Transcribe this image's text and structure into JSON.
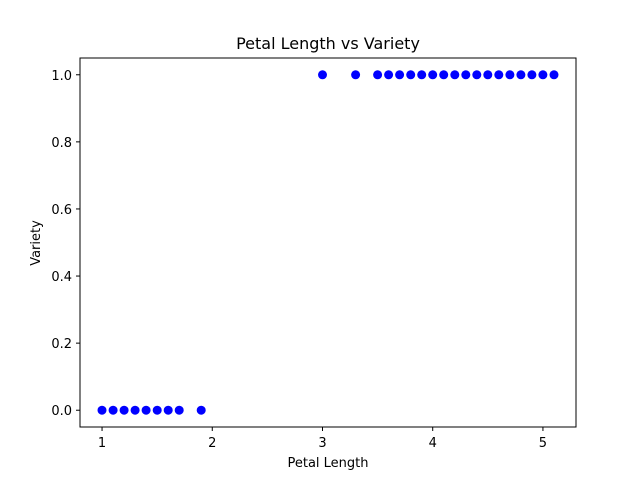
{
  "chart_data": {
    "type": "scatter",
    "title": "Petal Length vs Variety",
    "xlabel": "Petal Length",
    "ylabel": "Variety",
    "xlim": [
      0.8,
      5.3
    ],
    "ylim": [
      -0.05,
      1.05
    ],
    "xticks": [
      1,
      2,
      3,
      4,
      5
    ],
    "yticks": [
      0.0,
      0.2,
      0.4,
      0.6,
      0.8,
      1.0
    ],
    "xtick_labels": [
      "1",
      "2",
      "3",
      "4",
      "5"
    ],
    "ytick_labels": [
      "0.0",
      "0.2",
      "0.4",
      "0.6",
      "0.8",
      "1.0"
    ],
    "grid": false,
    "marker_color": "#0000ff",
    "points": [
      {
        "x": 1.0,
        "y": 0
      },
      {
        "x": 1.1,
        "y": 0
      },
      {
        "x": 1.2,
        "y": 0
      },
      {
        "x": 1.3,
        "y": 0
      },
      {
        "x": 1.4,
        "y": 0
      },
      {
        "x": 1.5,
        "y": 0
      },
      {
        "x": 1.6,
        "y": 0
      },
      {
        "x": 1.7,
        "y": 0
      },
      {
        "x": 1.9,
        "y": 0
      },
      {
        "x": 3.0,
        "y": 1
      },
      {
        "x": 3.3,
        "y": 1
      },
      {
        "x": 3.5,
        "y": 1
      },
      {
        "x": 3.6,
        "y": 1
      },
      {
        "x": 3.7,
        "y": 1
      },
      {
        "x": 3.8,
        "y": 1
      },
      {
        "x": 3.9,
        "y": 1
      },
      {
        "x": 4.0,
        "y": 1
      },
      {
        "x": 4.1,
        "y": 1
      },
      {
        "x": 4.2,
        "y": 1
      },
      {
        "x": 4.3,
        "y": 1
      },
      {
        "x": 4.4,
        "y": 1
      },
      {
        "x": 4.5,
        "y": 1
      },
      {
        "x": 4.6,
        "y": 1
      },
      {
        "x": 4.7,
        "y": 1
      },
      {
        "x": 4.8,
        "y": 1
      },
      {
        "x": 4.9,
        "y": 1
      },
      {
        "x": 5.0,
        "y": 1
      },
      {
        "x": 5.1,
        "y": 1
      }
    ]
  }
}
